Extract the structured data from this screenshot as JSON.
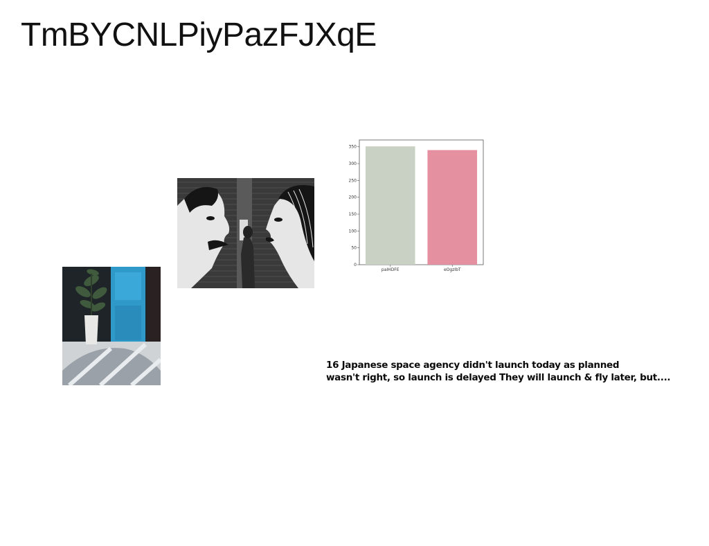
{
  "page": {
    "title": "TmBYCNLPiyPazFJXqE"
  },
  "images": {
    "plant_photo": "photo-plant-doorway",
    "mural_photo": "photo-mural-couple"
  },
  "caption": {
    "line1": "16 Japanese space agency didn't launch today as planned",
    "line2": "wasn't right, so launch is delayed They will launch & fly later, but...."
  },
  "chart_data": {
    "type": "bar",
    "categories": [
      "paIHDFE",
      "eOgzIbT"
    ],
    "values": [
      351,
      340
    ],
    "colors": [
      "#c9d1c4",
      "#e590a0"
    ],
    "title": "",
    "xlabel": "",
    "ylabel": "",
    "ylim": [
      0,
      370
    ],
    "yticks": [
      "0",
      "50",
      "100",
      "150",
      "200",
      "250",
      "300",
      "350"
    ],
    "grid": false
  }
}
